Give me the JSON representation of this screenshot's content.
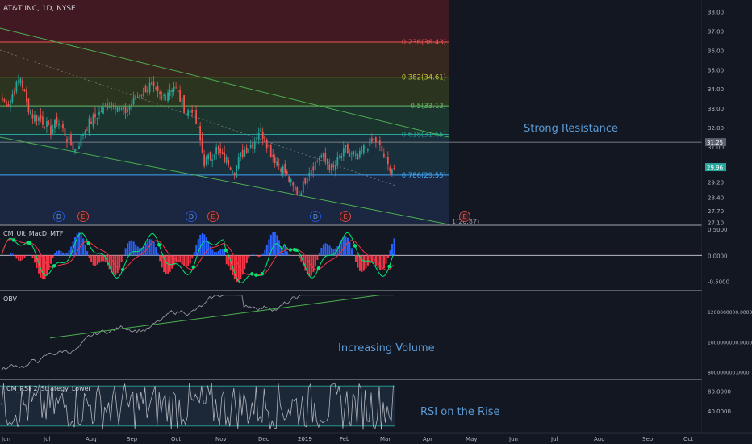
{
  "chart_data": [
    {
      "type": "candlestick",
      "symbol_title": "AT&T INC, 1D, NYSE",
      "y_axis_ticks": [
        "38.00",
        "37.00",
        "36.00",
        "35.00",
        "34.00",
        "33.00",
        "32.00",
        "31.00",
        "30.00",
        "29.20",
        "28.40",
        "27.70",
        "27.10"
      ],
      "ylim": [
        27.0,
        38.6
      ],
      "x_axis_ticks": [
        "Jun",
        "Jul",
        "Aug",
        "Sep",
        "Oct",
        "Nov",
        "Dec",
        "2019",
        "Feb",
        "Mar",
        "Apr",
        "May",
        "Jun",
        "Jul",
        "Aug",
        "Sep",
        "Oct"
      ],
      "last_price_labels": [
        "31.25",
        "29.96"
      ],
      "fib_levels": [
        {
          "label": "0.236(36.43)",
          "value": 36.43,
          "color": "#ef5350"
        },
        {
          "label": "0.382(34.61)",
          "value": 34.61,
          "color": "#c0ca33"
        },
        {
          "label": "0.5(33.13)",
          "value": 33.13,
          "color": "#66bb6a"
        },
        {
          "label": "0.618(31.65)",
          "value": 31.65,
          "color": "#26a69a"
        },
        {
          "label": "0.786(29.55)",
          "value": 29.55,
          "color": "#42a5f5"
        }
      ],
      "fib_bottom_label": "1(26.87)",
      "annotation": "Strong Resistance",
      "event_markers": [
        {
          "label": "D",
          "kind": "dividend",
          "x": "Jul"
        },
        {
          "label": "E",
          "kind": "earnings",
          "x": "Jul"
        },
        {
          "label": "D",
          "kind": "dividend",
          "x": "Oct"
        },
        {
          "label": "E",
          "kind": "earnings",
          "x": "Oct"
        },
        {
          "label": "D",
          "kind": "dividend",
          "x": "Jan"
        },
        {
          "label": "E",
          "kind": "earnings",
          "x": "Jan"
        },
        {
          "label": "E",
          "kind": "earnings",
          "x": "Apr"
        }
      ],
      "closes_approx": [
        33.4,
        33.2,
        34.0,
        34.6,
        33.2,
        32.6,
        32.5,
        32.2,
        31.8,
        32.4,
        31.8,
        31.2,
        30.8,
        31.6,
        32.2,
        32.5,
        32.8,
        33.1,
        33.4,
        33.0,
        32.8,
        33.2,
        33.6,
        33.9,
        34.2,
        33.8,
        33.5,
        33.9,
        34.2,
        33.5,
        32.8,
        33.0,
        31.8,
        30.2,
        30.5,
        30.9,
        30.4,
        30.2,
        29.8,
        30.6,
        31.0,
        31.2,
        31.9,
        31.4,
        30.6,
        30.2,
        29.8,
        29.2,
        28.6,
        28.9,
        29.8,
        30.1,
        30.6,
        30.2,
        29.8,
        30.4,
        30.8,
        30.6,
        30.3,
        30.9,
        31.2,
        31.3,
        30.8,
        30.0,
        29.9
      ]
    },
    {
      "type": "line",
      "indicator": "CM_Ult_MacD_MTF",
      "y_axis_ticks": [
        "0.5000",
        "0.0000",
        "-0.5000"
      ],
      "ylim": [
        -0.65,
        0.55
      ]
    },
    {
      "type": "line",
      "indicator": "OBV",
      "y_axis_ticks": [
        "1200000000.0000",
        "1000000000.0000",
        "800000000.0000"
      ],
      "ylim": [
        760000000,
        1330000000
      ],
      "annotation": "Increasing Volume"
    },
    {
      "type": "line",
      "indicator": "_CM_RSI_2_Strategy_Lower",
      "y_axis_ticks": [
        "80.0000",
        "40.0000"
      ],
      "ylim": [
        0,
        100
      ],
      "annotation": "RSI on the Rise"
    }
  ],
  "colors": {
    "background": "#131722",
    "candle_up": "#26a69a",
    "candle_down": "#ef5350",
    "trendline": "#4caf50",
    "annotation_text": "#5b9bd5",
    "axis_text": "#b2b5be"
  }
}
